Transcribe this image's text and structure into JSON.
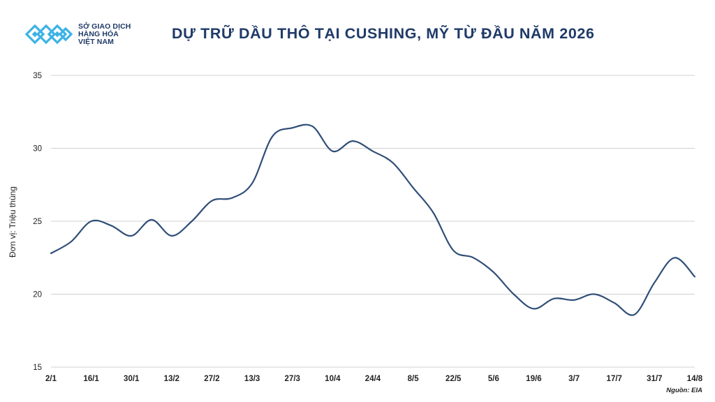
{
  "brand": {
    "logo_icon": "sgd-hang-hoa-logo-icon",
    "line1": "SỞ GIAO DỊCH",
    "line2": "HÀNG HÓA",
    "line3": "VIỆT NAM",
    "color": "#3bb2e6"
  },
  "source_note": "Nguồn: EIA",
  "chart_data": {
    "type": "line",
    "title": "DỰ TRỮ DẦU THÔ TẠI CUSHING, MỸ TỪ ĐẦU NĂM 2026",
    "ylabel": "Đơn vị: Triệu thùng",
    "xlabel": "",
    "ylim": [
      15,
      35
    ],
    "yticks": [
      15,
      20,
      25,
      30,
      35
    ],
    "grid": true,
    "legend": "none",
    "line_color": "#2f4e78",
    "x_tick_labels": [
      "2/1",
      "16/1",
      "30/1",
      "13/2",
      "27/2",
      "13/3",
      "27/3",
      "10/4",
      "24/4",
      "8/5",
      "22/5",
      "5/6",
      "19/6",
      "3/7",
      "17/7",
      "31/7",
      "14/8"
    ],
    "x": [
      "2/1",
      "9/1",
      "16/1",
      "23/1",
      "30/1",
      "6/2",
      "13/2",
      "20/2",
      "27/2",
      "6/3",
      "13/3",
      "20/3",
      "27/3",
      "3/4",
      "10/4",
      "17/4",
      "24/4",
      "1/5",
      "8/5",
      "15/5",
      "22/5",
      "29/5",
      "5/6",
      "12/6",
      "19/6",
      "26/6",
      "3/7",
      "10/7",
      "17/7",
      "24/7",
      "31/7",
      "7/8",
      "14/8"
    ],
    "series": [
      {
        "values": [
          22.8,
          23.6,
          25.0,
          24.7,
          24.0,
          25.1,
          24.0,
          25.0,
          26.4,
          26.6,
          27.6,
          30.8,
          31.4,
          31.5,
          29.8,
          30.5,
          29.8,
          29.0,
          27.3,
          25.6,
          23.0,
          22.5,
          21.5,
          20.0,
          19.0,
          19.7,
          19.6,
          20.0,
          19.4,
          18.6,
          20.8,
          22.5,
          21.2
        ]
      }
    ]
  }
}
